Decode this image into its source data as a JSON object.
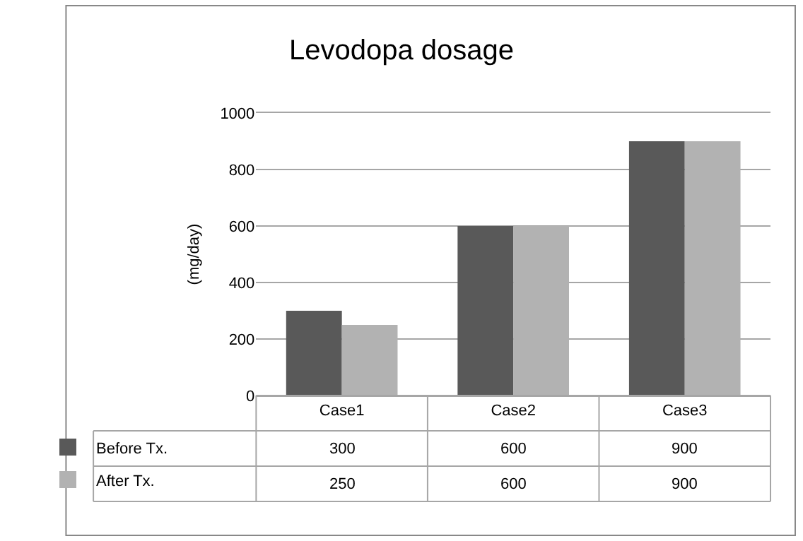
{
  "chart_data": {
    "type": "bar",
    "title": "Levodopa dosage",
    "ylabel": "(mg/day)",
    "categories": [
      "Case1",
      "Case2",
      "Case3"
    ],
    "series": [
      {
        "name": "Before Tx.",
        "color": "#595959",
        "values": [
          300,
          600,
          900
        ]
      },
      {
        "name": "After Tx.",
        "color": "#b2b2b2",
        "values": [
          250,
          600,
          900
        ]
      }
    ],
    "ylim": [
      0,
      1000
    ],
    "yticks": [
      0,
      200,
      400,
      600,
      800,
      1000
    ],
    "grid": "y",
    "legend": "bottom",
    "data_labels": true
  }
}
